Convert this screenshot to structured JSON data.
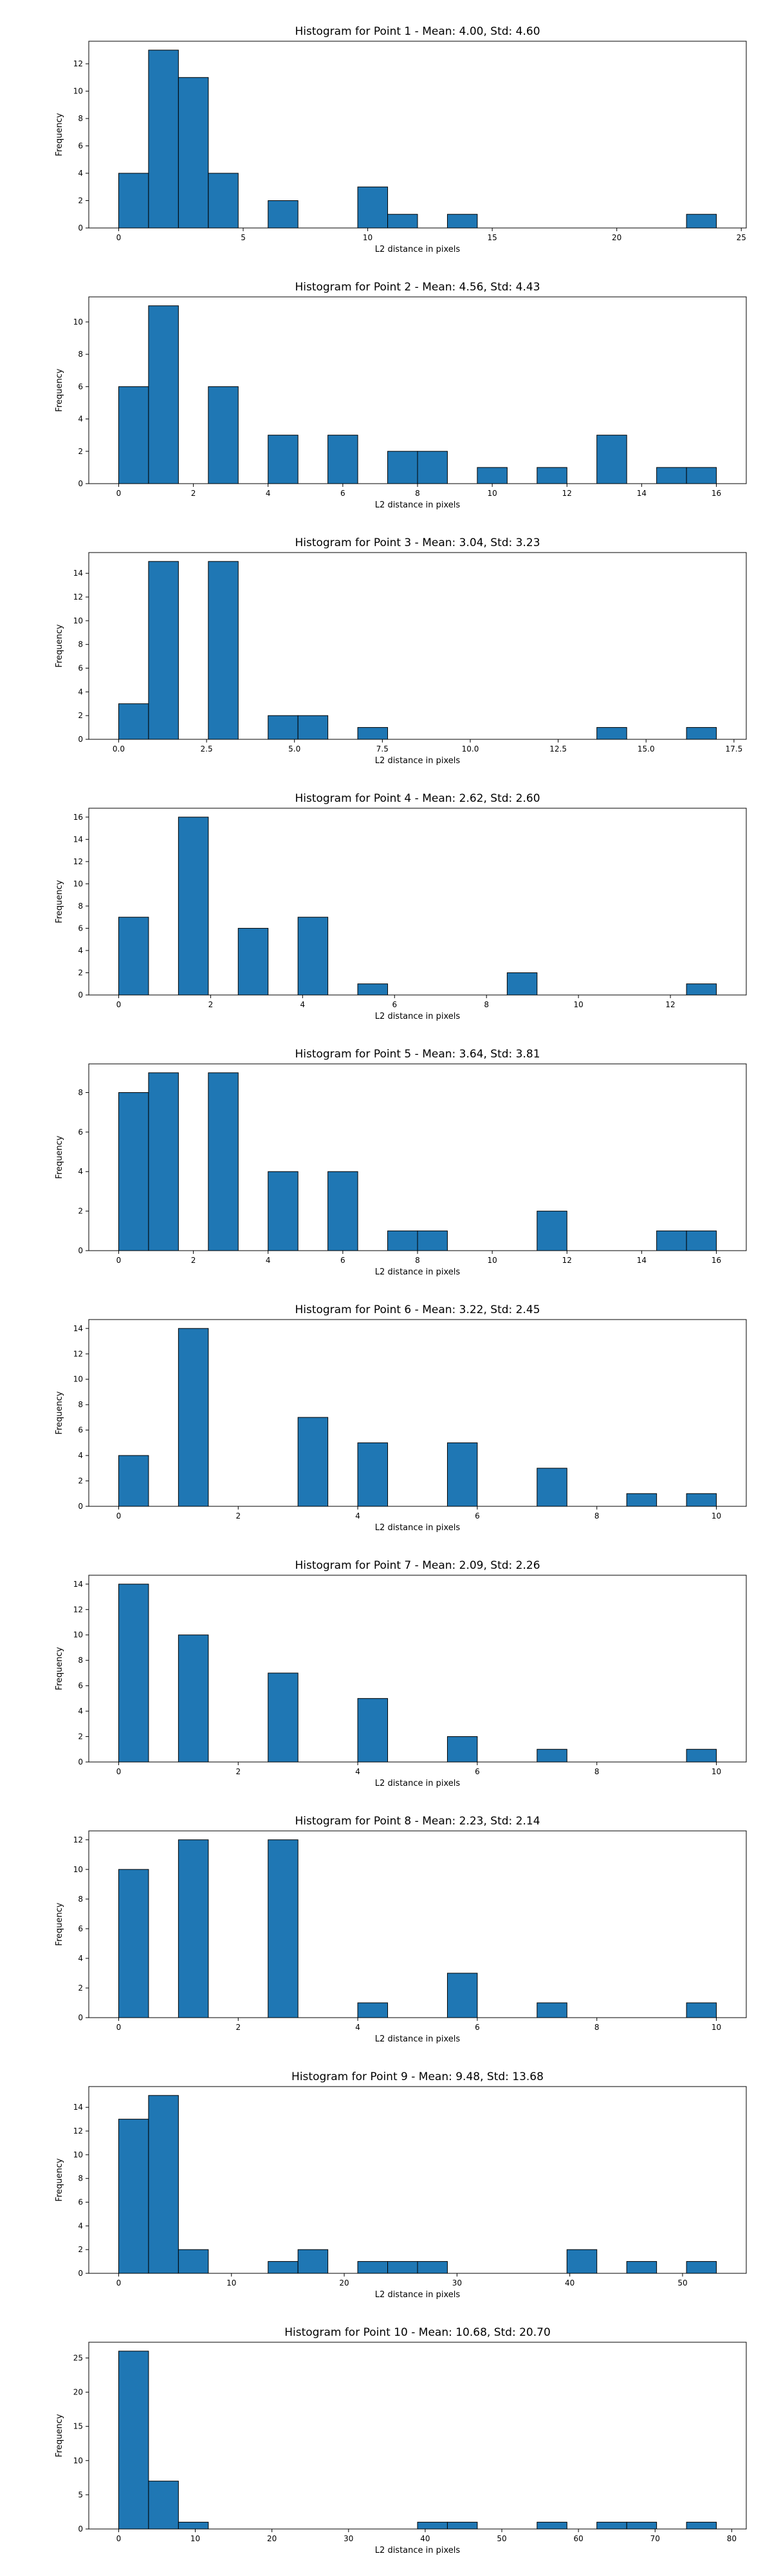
{
  "style": {
    "bar_color": "#1f77b4",
    "edge_color": "#000000",
    "background": "#ffffff"
  },
  "chart_data": [
    {
      "type": "bar",
      "title": "Histogram for Point 1 - Mean: 4.00, Std: 4.60",
      "xlabel": "L2 distance in pixels",
      "ylabel": "Frequency",
      "xlim": [
        -1.2,
        25.2
      ],
      "ylim": [
        0,
        13.65
      ],
      "xticks": [
        0,
        5,
        10,
        15,
        20,
        25
      ],
      "xticklabels": [
        "0",
        "5",
        "10",
        "15",
        "20",
        "25"
      ],
      "yticks": [
        0,
        2,
        4,
        6,
        8,
        10,
        12
      ],
      "yticklabels": [
        "0",
        "2",
        "4",
        "6",
        "8",
        "10",
        "12"
      ],
      "bins": [
        {
          "x0": 0.0,
          "x1": 1.2,
          "count": 4
        },
        {
          "x0": 1.2,
          "x1": 2.4,
          "count": 13
        },
        {
          "x0": 2.4,
          "x1": 3.6,
          "count": 11
        },
        {
          "x0": 3.6,
          "x1": 4.8,
          "count": 4
        },
        {
          "x0": 6.0,
          "x1": 7.2,
          "count": 2
        },
        {
          "x0": 9.6,
          "x1": 10.8,
          "count": 3
        },
        {
          "x0": 10.8,
          "x1": 12.0,
          "count": 1
        },
        {
          "x0": 13.2,
          "x1": 14.4,
          "count": 1
        },
        {
          "x0": 22.8,
          "x1": 24.0,
          "count": 1
        }
      ]
    },
    {
      "type": "bar",
      "title": "Histogram for Point 2 - Mean: 4.56, Std: 4.43",
      "xlabel": "L2 distance in pixels",
      "ylabel": "Frequency",
      "xlim": [
        -0.8,
        16.8
      ],
      "ylim": [
        0,
        11.55
      ],
      "xticks": [
        0,
        2,
        4,
        6,
        8,
        10,
        12,
        14,
        16
      ],
      "xticklabels": [
        "0",
        "2",
        "4",
        "6",
        "8",
        "10",
        "12",
        "14",
        "16"
      ],
      "yticks": [
        0,
        2,
        4,
        6,
        8,
        10
      ],
      "yticklabels": [
        "0",
        "2",
        "4",
        "6",
        "8",
        "10"
      ],
      "bins": [
        {
          "x0": 0.0,
          "x1": 0.8,
          "count": 6
        },
        {
          "x0": 0.8,
          "x1": 1.6,
          "count": 11
        },
        {
          "x0": 2.4,
          "x1": 3.2,
          "count": 6
        },
        {
          "x0": 4.0,
          "x1": 4.8,
          "count": 3
        },
        {
          "x0": 5.6,
          "x1": 6.4,
          "count": 3
        },
        {
          "x0": 7.2,
          "x1": 8.0,
          "count": 2
        },
        {
          "x0": 8.0,
          "x1": 8.8,
          "count": 2
        },
        {
          "x0": 9.6,
          "x1": 10.4,
          "count": 1
        },
        {
          "x0": 11.2,
          "x1": 12.0,
          "count": 1
        },
        {
          "x0": 12.8,
          "x1": 13.6,
          "count": 3
        },
        {
          "x0": 14.4,
          "x1": 15.2,
          "count": 1
        },
        {
          "x0": 15.2,
          "x1": 16.0,
          "count": 1
        }
      ]
    },
    {
      "type": "bar",
      "title": "Histogram for Point 3 - Mean: 3.04, Std: 3.23",
      "xlabel": "L2 distance in pixels",
      "ylabel": "Frequency",
      "xlim": [
        -0.85,
        17.85
      ],
      "ylim": [
        0,
        15.75
      ],
      "xticks": [
        0,
        2.5,
        5,
        7.5,
        10,
        12.5,
        15,
        17.5
      ],
      "xticklabels": [
        "0.0",
        "2.5",
        "5.0",
        "7.5",
        "10.0",
        "12.5",
        "15.0",
        "17.5"
      ],
      "yticks": [
        0,
        2,
        4,
        6,
        8,
        10,
        12,
        14
      ],
      "yticklabels": [
        "0",
        "2",
        "4",
        "6",
        "8",
        "10",
        "12",
        "14"
      ],
      "bins": [
        {
          "x0": 0.0,
          "x1": 0.85,
          "count": 3
        },
        {
          "x0": 0.85,
          "x1": 1.7,
          "count": 15
        },
        {
          "x0": 2.55,
          "x1": 3.4,
          "count": 15
        },
        {
          "x0": 4.25,
          "x1": 5.1,
          "count": 2
        },
        {
          "x0": 5.1,
          "x1": 5.95,
          "count": 2
        },
        {
          "x0": 6.8,
          "x1": 7.65,
          "count": 1
        },
        {
          "x0": 13.6,
          "x1": 14.45,
          "count": 1
        },
        {
          "x0": 16.15,
          "x1": 17.0,
          "count": 1
        }
      ]
    },
    {
      "type": "bar",
      "title": "Histogram for Point 4 - Mean: 2.62, Std: 2.60",
      "xlabel": "L2 distance in pixels",
      "ylabel": "Frequency",
      "xlim": [
        -0.65,
        13.65
      ],
      "ylim": [
        0,
        16.8
      ],
      "xticks": [
        0,
        2,
        4,
        6,
        8,
        10,
        12
      ],
      "xticklabels": [
        "0",
        "2",
        "4",
        "6",
        "8",
        "10",
        "12"
      ],
      "yticks": [
        0,
        2,
        4,
        6,
        8,
        10,
        12,
        14,
        16
      ],
      "yticklabels": [
        "0",
        "2",
        "4",
        "6",
        "8",
        "10",
        "12",
        "14",
        "16"
      ],
      "bins": [
        {
          "x0": 0.0,
          "x1": 0.65,
          "count": 7
        },
        {
          "x0": 1.3,
          "x1": 1.95,
          "count": 16
        },
        {
          "x0": 2.6,
          "x1": 3.25,
          "count": 6
        },
        {
          "x0": 3.9,
          "x1": 4.55,
          "count": 7
        },
        {
          "x0": 5.2,
          "x1": 5.85,
          "count": 1
        },
        {
          "x0": 8.45,
          "x1": 9.1,
          "count": 2
        },
        {
          "x0": 12.35,
          "x1": 13.0,
          "count": 1
        }
      ]
    },
    {
      "type": "bar",
      "title": "Histogram for Point 5 - Mean: 3.64, Std: 3.81",
      "xlabel": "L2 distance in pixels",
      "ylabel": "Frequency",
      "xlim": [
        -0.8,
        16.8
      ],
      "ylim": [
        0,
        9.45
      ],
      "xticks": [
        0,
        2,
        4,
        6,
        8,
        10,
        12,
        14,
        16
      ],
      "xticklabels": [
        "0",
        "2",
        "4",
        "6",
        "8",
        "10",
        "12",
        "14",
        "16"
      ],
      "yticks": [
        0,
        2,
        4,
        6,
        8
      ],
      "yticklabels": [
        "0",
        "2",
        "4",
        "6",
        "8"
      ],
      "bins": [
        {
          "x0": 0.0,
          "x1": 0.8,
          "count": 8
        },
        {
          "x0": 0.8,
          "x1": 1.6,
          "count": 9
        },
        {
          "x0": 2.4,
          "x1": 3.2,
          "count": 9
        },
        {
          "x0": 4.0,
          "x1": 4.8,
          "count": 4
        },
        {
          "x0": 5.6,
          "x1": 6.4,
          "count": 4
        },
        {
          "x0": 7.2,
          "x1": 8.0,
          "count": 1
        },
        {
          "x0": 8.0,
          "x1": 8.8,
          "count": 1
        },
        {
          "x0": 11.2,
          "x1": 12.0,
          "count": 2
        },
        {
          "x0": 14.4,
          "x1": 15.2,
          "count": 1
        },
        {
          "x0": 15.2,
          "x1": 16.0,
          "count": 1
        }
      ]
    },
    {
      "type": "bar",
      "title": "Histogram for Point 6 - Mean: 3.22, Std: 2.45",
      "xlabel": "L2 distance in pixels",
      "ylabel": "Frequency",
      "xlim": [
        -0.5,
        10.5
      ],
      "ylim": [
        0,
        14.7
      ],
      "xticks": [
        0,
        2,
        4,
        6,
        8,
        10
      ],
      "xticklabels": [
        "0",
        "2",
        "4",
        "6",
        "8",
        "10"
      ],
      "yticks": [
        0,
        2,
        4,
        6,
        8,
        10,
        12,
        14
      ],
      "yticklabels": [
        "0",
        "2",
        "4",
        "6",
        "8",
        "10",
        "12",
        "14"
      ],
      "bins": [
        {
          "x0": 0.0,
          "x1": 0.5,
          "count": 4
        },
        {
          "x0": 1.0,
          "x1": 1.5,
          "count": 14
        },
        {
          "x0": 3.0,
          "x1": 3.5,
          "count": 7
        },
        {
          "x0": 4.0,
          "x1": 4.5,
          "count": 5
        },
        {
          "x0": 5.5,
          "x1": 6.0,
          "count": 5
        },
        {
          "x0": 7.0,
          "x1": 7.5,
          "count": 3
        },
        {
          "x0": 8.5,
          "x1": 9.0,
          "count": 1
        },
        {
          "x0": 9.5,
          "x1": 10.0,
          "count": 1
        }
      ]
    },
    {
      "type": "bar",
      "title": "Histogram for Point 7 - Mean: 2.09, Std: 2.26",
      "xlabel": "L2 distance in pixels",
      "ylabel": "Frequency",
      "xlim": [
        -0.5,
        10.5
      ],
      "ylim": [
        0,
        14.7
      ],
      "xticks": [
        0,
        2,
        4,
        6,
        8,
        10
      ],
      "xticklabels": [
        "0",
        "2",
        "4",
        "6",
        "8",
        "10"
      ],
      "yticks": [
        0,
        2,
        4,
        6,
        8,
        10,
        12,
        14
      ],
      "yticklabels": [
        "0",
        "2",
        "4",
        "6",
        "8",
        "10",
        "12",
        "14"
      ],
      "bins": [
        {
          "x0": 0.0,
          "x1": 0.5,
          "count": 14
        },
        {
          "x0": 1.0,
          "x1": 1.5,
          "count": 10
        },
        {
          "x0": 2.5,
          "x1": 3.0,
          "count": 7
        },
        {
          "x0": 4.0,
          "x1": 4.5,
          "count": 5
        },
        {
          "x0": 5.5,
          "x1": 6.0,
          "count": 2
        },
        {
          "x0": 7.0,
          "x1": 7.5,
          "count": 1
        },
        {
          "x0": 9.5,
          "x1": 10.0,
          "count": 1
        }
      ]
    },
    {
      "type": "bar",
      "title": "Histogram for Point 8 - Mean: 2.23, Std: 2.14",
      "xlabel": "L2 distance in pixels",
      "ylabel": "Frequency",
      "xlim": [
        -0.5,
        10.5
      ],
      "ylim": [
        0,
        12.6
      ],
      "xticks": [
        0,
        2,
        4,
        6,
        8,
        10
      ],
      "xticklabels": [
        "0",
        "2",
        "4",
        "6",
        "8",
        "10"
      ],
      "yticks": [
        0,
        2,
        4,
        6,
        8,
        10,
        12
      ],
      "yticklabels": [
        "0",
        "2",
        "4",
        "6",
        "8",
        "10",
        "12"
      ],
      "bins": [
        {
          "x0": 0.0,
          "x1": 0.5,
          "count": 10
        },
        {
          "x0": 1.0,
          "x1": 1.5,
          "count": 12
        },
        {
          "x0": 2.5,
          "x1": 3.0,
          "count": 12
        },
        {
          "x0": 4.0,
          "x1": 4.5,
          "count": 1
        },
        {
          "x0": 5.5,
          "x1": 6.0,
          "count": 3
        },
        {
          "x0": 7.0,
          "x1": 7.5,
          "count": 1
        },
        {
          "x0": 9.5,
          "x1": 10.0,
          "count": 1
        }
      ]
    },
    {
      "type": "bar",
      "title": "Histogram for Point 9 - Mean: 9.48, Std: 13.68",
      "xlabel": "L2 distance in pixels",
      "ylabel": "Frequency",
      "xlim": [
        -2.65,
        55.65
      ],
      "ylim": [
        0,
        15.75
      ],
      "xticks": [
        0,
        10,
        20,
        30,
        40,
        50
      ],
      "xticklabels": [
        "0",
        "10",
        "20",
        "30",
        "40",
        "50"
      ],
      "yticks": [
        0,
        2,
        4,
        6,
        8,
        10,
        12,
        14
      ],
      "yticklabels": [
        "0",
        "2",
        "4",
        "6",
        "8",
        "10",
        "12",
        "14"
      ],
      "bins": [
        {
          "x0": 0.0,
          "x1": 2.65,
          "count": 13
        },
        {
          "x0": 2.65,
          "x1": 5.3,
          "count": 15
        },
        {
          "x0": 5.3,
          "x1": 7.95,
          "count": 2
        },
        {
          "x0": 13.25,
          "x1": 15.9,
          "count": 1
        },
        {
          "x0": 15.9,
          "x1": 18.55,
          "count": 2
        },
        {
          "x0": 21.2,
          "x1": 23.85,
          "count": 1
        },
        {
          "x0": 23.85,
          "x1": 26.5,
          "count": 1
        },
        {
          "x0": 26.5,
          "x1": 29.15,
          "count": 1
        },
        {
          "x0": 39.75,
          "x1": 42.4,
          "count": 2
        },
        {
          "x0": 45.05,
          "x1": 47.7,
          "count": 1
        },
        {
          "x0": 50.35,
          "x1": 53.0,
          "count": 1
        }
      ]
    },
    {
      "type": "bar",
      "title": "Histogram for Point 10 - Mean: 10.68, Std: 20.70",
      "xlabel": "L2 distance in pixels",
      "ylabel": "Frequency",
      "xlim": [
        -3.9,
        81.9
      ],
      "ylim": [
        0,
        27.3
      ],
      "xticks": [
        0,
        10,
        20,
        30,
        40,
        50,
        60,
        70,
        80
      ],
      "xticklabels": [
        "0",
        "10",
        "20",
        "30",
        "40",
        "50",
        "60",
        "70",
        "80"
      ],
      "yticks": [
        0,
        5,
        10,
        15,
        20,
        25
      ],
      "yticklabels": [
        "0",
        "5",
        "10",
        "15",
        "20",
        "25"
      ],
      "bins": [
        {
          "x0": 0.0,
          "x1": 3.9,
          "count": 26
        },
        {
          "x0": 3.9,
          "x1": 7.8,
          "count": 7
        },
        {
          "x0": 7.8,
          "x1": 11.7,
          "count": 1
        },
        {
          "x0": 39.0,
          "x1": 42.9,
          "count": 1
        },
        {
          "x0": 42.9,
          "x1": 46.8,
          "count": 1
        },
        {
          "x0": 54.6,
          "x1": 58.5,
          "count": 1
        },
        {
          "x0": 62.4,
          "x1": 66.3,
          "count": 1
        },
        {
          "x0": 66.3,
          "x1": 70.2,
          "count": 1
        },
        {
          "x0": 74.1,
          "x1": 78.0,
          "count": 1
        }
      ]
    }
  ]
}
